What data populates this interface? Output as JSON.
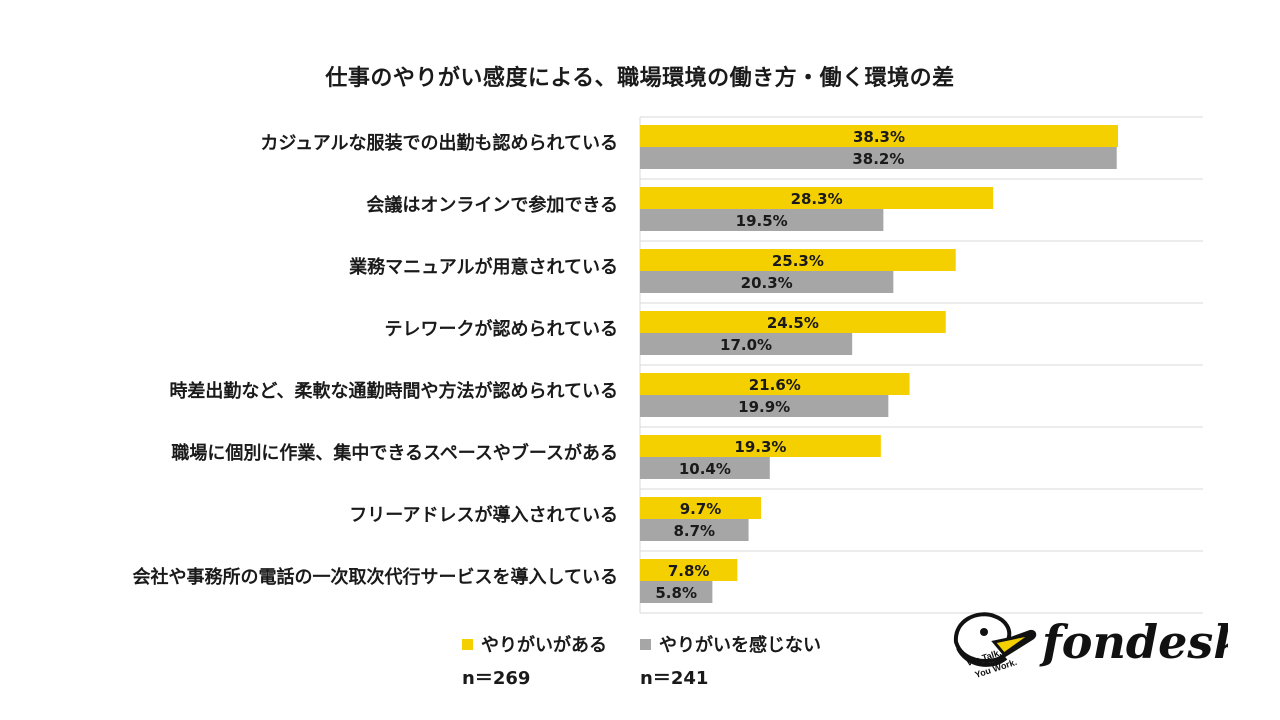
{
  "chart_data": {
    "type": "bar",
    "orientation": "horizontal",
    "title": "仕事のやりがい感度による、職場環境の働き方・働く環境の差",
    "categories": [
      "カジュアルな服装での出勤も認められている",
      "会議はオンラインで参加できる",
      "業務マニュアルが用意されている",
      "テレワークが認められている",
      "時差出勤など、柔軟な通勤時間や方法が認められている",
      "職場に個別に作業、集中できるスペースやブースがある",
      "フリーアドレスが導入されている",
      "会社や事務所の電話の一次取次代行サービスを導入している"
    ],
    "series": [
      {
        "name": "やりがいがある",
        "color": "#F5D000",
        "values": [
          38.3,
          28.3,
          25.3,
          24.5,
          21.6,
          19.3,
          9.7,
          7.8
        ],
        "labels": [
          "38.3%",
          "28.3%",
          "25.3%",
          "24.5%",
          "21.6%",
          "19.3%",
          "9.7%",
          "7.8%"
        ]
      },
      {
        "name": "やりがいを感じない",
        "color": "#A6A6A6",
        "values": [
          38.2,
          19.5,
          20.3,
          17.0,
          19.9,
          10.4,
          8.7,
          5.8
        ],
        "labels": [
          "38.2%",
          "19.5%",
          "20.3%",
          "17.0%",
          "19.9%",
          "10.4%",
          "8.7%",
          "5.8%"
        ]
      }
    ],
    "xlim": [
      0,
      45
    ],
    "grid": "horizontal row separators",
    "legend": "bottom"
  },
  "legend": {
    "items": [
      {
        "label": "やりがいがある",
        "color": "#F5D000",
        "n": "n＝269"
      },
      {
        "label": "やりがいを感じない",
        "color": "#A6A6A6",
        "n": "n＝241"
      }
    ]
  },
  "logo": {
    "wordmark": "fondesk",
    "tagline_1": "We Talk.",
    "tagline_2": "You Work."
  }
}
